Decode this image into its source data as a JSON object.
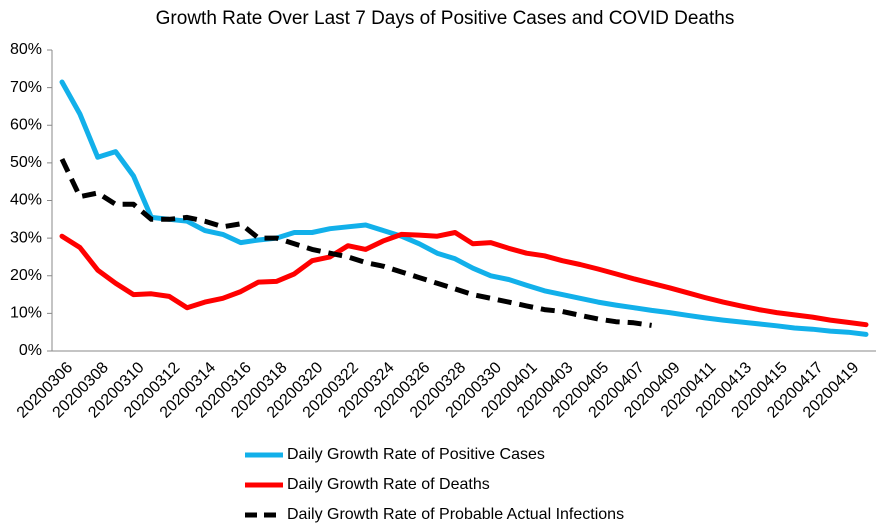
{
  "chart_data": {
    "type": "line",
    "title": "Growth Rate Over Last 7 Days of Positive Cases and COVID Deaths",
    "categories": [
      "20200306",
      null,
      "20200308",
      null,
      "20200310",
      null,
      "20200312",
      null,
      "20200314",
      null,
      "20200316",
      null,
      "20200318",
      null,
      "20200320",
      null,
      "20200322",
      null,
      "20200324",
      null,
      "20200326",
      null,
      "20200328",
      null,
      "20200330",
      null,
      "20200401",
      null,
      "20200403",
      null,
      "20200405",
      null,
      "20200407",
      null,
      "20200409",
      null,
      "20200411",
      null,
      "20200413",
      null,
      "20200415",
      null,
      "20200417",
      null,
      "20200419",
      null
    ],
    "series": [
      {
        "name": "Daily Growth Rate of Positive Cases",
        "color": "#12b0ea",
        "dash": false,
        "values": [
          71.5,
          63,
          51.5,
          53,
          46.5,
          35.5,
          35,
          34.5,
          32,
          31,
          28.8,
          29.5,
          30,
          31.5,
          31.5,
          32.5,
          33,
          33.5,
          32,
          30.5,
          28.5,
          26,
          24.5,
          22,
          20,
          19,
          17.5,
          16,
          15,
          14,
          13,
          12.2,
          11.5,
          10.8,
          10.2,
          9.5,
          8.8,
          8.2,
          7.7,
          7.2,
          6.7,
          6.1,
          5.8,
          5.3,
          5,
          4.4
        ]
      },
      {
        "name": "Daily Growth Rate of Deaths",
        "color": "#ff0000",
        "dash": false,
        "values": [
          30.5,
          27.5,
          21.5,
          18,
          15,
          15.2,
          14.5,
          11.5,
          13,
          14,
          15.8,
          18.3,
          18.5,
          20.5,
          24,
          25,
          28,
          27,
          29.3,
          31,
          30.8,
          30.5,
          31.5,
          28.5,
          28.8,
          27.3,
          26,
          25.3,
          24,
          23,
          21.8,
          20.5,
          19.2,
          18,
          16.8,
          15.5,
          14.2,
          13,
          12,
          11,
          10.2,
          9.6,
          9,
          8.2,
          7.6,
          7
        ]
      },
      {
        "name": "Daily Growth Rate of Probable Actual Infections",
        "color": "#000000",
        "dash": true,
        "values": [
          51,
          41,
          42,
          39,
          39,
          35,
          35,
          35.5,
          34.5,
          33,
          33.8,
          30,
          30,
          28.5,
          27,
          26,
          25,
          23.5,
          22.5,
          21,
          19.5,
          18,
          16.5,
          15,
          14,
          13,
          12,
          11,
          10.5,
          9.5,
          8.5,
          7.8,
          7.5,
          6.8,
          null,
          null,
          null,
          null,
          null,
          null,
          null,
          null,
          null,
          null,
          null,
          null
        ]
      }
    ],
    "ylim": [
      0,
      80
    ],
    "yticks": [
      {
        "value": 0,
        "label": "0%"
      },
      {
        "value": 10,
        "label": "10%"
      },
      {
        "value": 20,
        "label": "20%"
      },
      {
        "value": 30,
        "label": "30%"
      },
      {
        "value": 40,
        "label": "40%"
      },
      {
        "value": 50,
        "label": "50%"
      },
      {
        "value": 60,
        "label": "60%"
      },
      {
        "value": 70,
        "label": "70%"
      },
      {
        "value": 80,
        "label": "80%"
      }
    ],
    "grid": false,
    "legend": "bottom"
  }
}
